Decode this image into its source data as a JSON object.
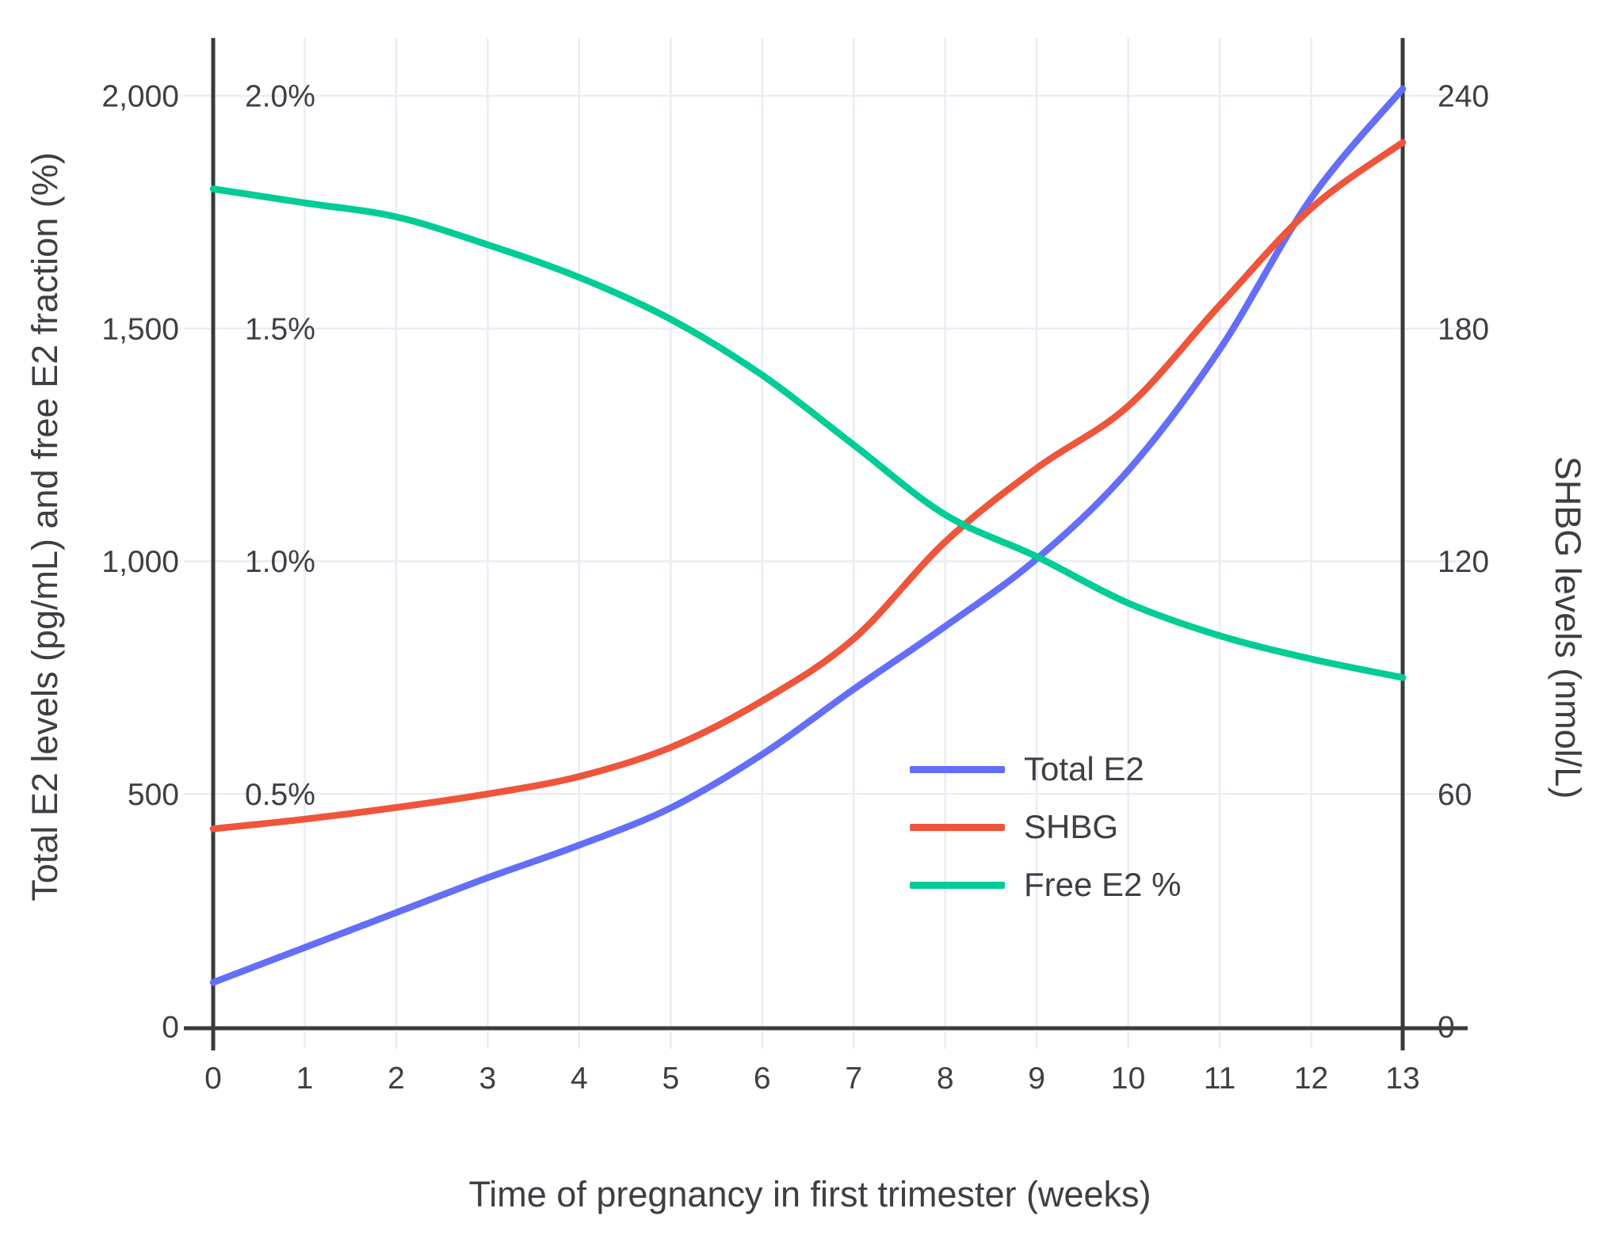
{
  "chart_data": {
    "type": "line",
    "title": "",
    "xlabel": "Time of pregnancy in first trimester (weeks)",
    "ylabel_left": "Total E2 levels (pg/mL) and free E2 fraction (%)",
    "ylabel_right": "SHBG levels (nmol/L)",
    "x": [
      0,
      1,
      2,
      3,
      4,
      5,
      6,
      7,
      8,
      9,
      10,
      11,
      12,
      13
    ],
    "x_tick_labels": [
      "0",
      "1",
      "2",
      "3",
      "4",
      "5",
      "6",
      "7",
      "8",
      "9",
      "10",
      "11",
      "12",
      "13"
    ],
    "left_axis": {
      "range": [
        0,
        2100
      ],
      "ticks": [
        0,
        500,
        1000,
        1500,
        2000
      ],
      "tick_labels": [
        "0",
        "500",
        "1,000",
        "1,500",
        "2,000"
      ]
    },
    "left_axis_percent_labels": {
      "ticks": [
        500,
        1000,
        1500,
        2000
      ],
      "labels": [
        "0.5%",
        "1.0%",
        "1.5%",
        "2.0%"
      ]
    },
    "right_axis": {
      "range": [
        0,
        252
      ],
      "ticks": [
        0,
        60,
        120,
        180,
        240
      ],
      "tick_labels": [
        "0",
        "60",
        "120",
        "180",
        "240"
      ]
    },
    "series": [
      {
        "name": "Total E2",
        "axis": "left",
        "units": "pg/mL",
        "color": "#636EFA",
        "values": [
          95,
          170,
          245,
          320,
          390,
          470,
          585,
          725,
          860,
          1005,
          1195,
          1455,
          1780,
          2015
        ]
      },
      {
        "name": "SHBG",
        "axis": "right",
        "units": "nmol/L",
        "color": "#EF553B",
        "values": [
          51,
          53.5,
          56.5,
          60,
          64.5,
          72,
          84,
          100,
          125,
          144,
          160,
          186,
          211,
          228
        ]
      },
      {
        "name": "Free E2 %",
        "axis": "percent",
        "units": "%",
        "color": "#00CC96",
        "values": [
          1.8,
          1.77,
          1.74,
          1.68,
          1.61,
          1.52,
          1.4,
          1.25,
          1.1,
          1.01,
          0.91,
          0.84,
          0.79,
          0.75
        ]
      }
    ],
    "legend_position": "middle-right",
    "grid": true,
    "colors": {
      "grid": "#E8EDF6",
      "axis_line": "#3a3a3a",
      "tick_text": "#3d3f44",
      "background": "#ffffff"
    }
  }
}
